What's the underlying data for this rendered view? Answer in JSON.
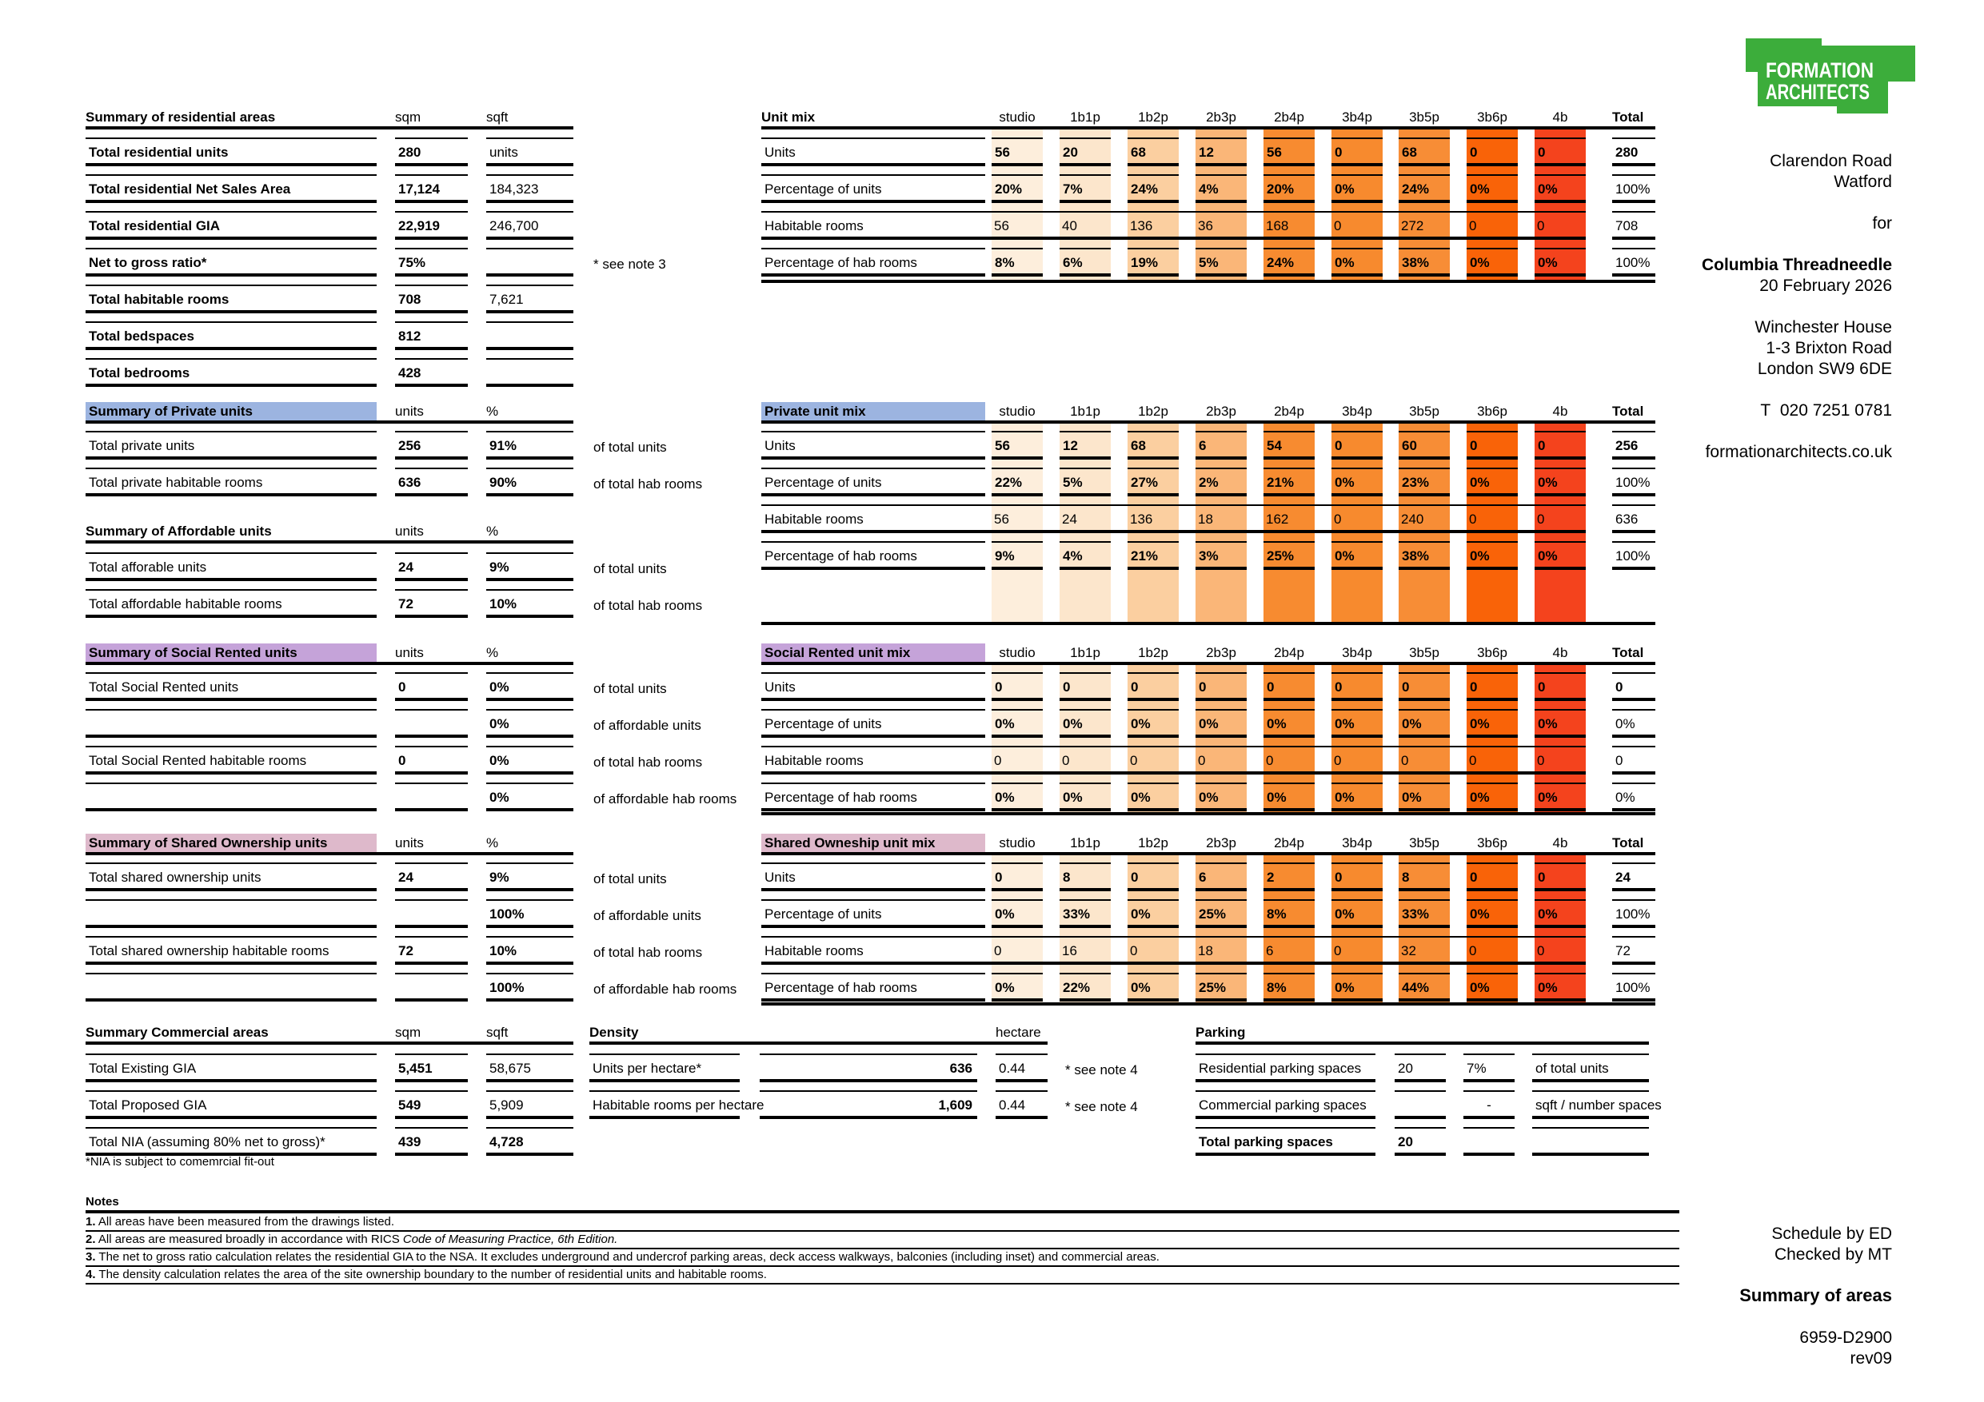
{
  "brand": {
    "line1": "FORMATION",
    "line2": "ARCHITECTS",
    "color": "#3CAD3B"
  },
  "project": {
    "address1": "Clarendon Road",
    "address2": "Watford",
    "for_label": "for",
    "client": "Columbia Threadneedle",
    "date": "20 February 2026",
    "office1": "Winchester House",
    "office2": "1-3 Brixton Road",
    "office3": "London SW9 6DE",
    "phone": "T  020 7251 0781",
    "website": "formationarchitects.co.uk"
  },
  "footer": {
    "schedule_by": "Schedule by ED",
    "checked_by": "Checked by MT",
    "doc_title": "Summary of areas",
    "doc_number": "6959-D2900",
    "revision": "rev09"
  },
  "labels": {
    "total": "Total"
  },
  "mix_columns": [
    "studio",
    "1b1p",
    "1b2p",
    "2b3p",
    "2b4p",
    "3b4p",
    "3b5p",
    "3b6p",
    "4b"
  ],
  "colors": {
    "blue": "#9CB4E0",
    "purple": "#C5A3D9",
    "pink": "#DEB9CB",
    "band_colors": [
      "#FDEEDC",
      "#FCE6CC",
      "#FBCFA0",
      "#FAB678",
      "#F78B30",
      "#F78A2E",
      "#F78D36",
      "#F96308",
      "#F4431D"
    ]
  },
  "residential_summary": {
    "title": "Summary of residential areas",
    "unit1": "sqm",
    "unit2": "sqft",
    "rows": [
      {
        "label": "Total residential units",
        "v1": "280",
        "v2": "units"
      },
      {
        "label": "Total residential Net Sales Area",
        "v1": "17,124",
        "v2": "184,323"
      },
      {
        "label": "Total residential GIA",
        "v1": "22,919",
        "v2": "246,700"
      },
      {
        "label": "Net to gross ratio*",
        "v1": "75%",
        "v2": "",
        "note": "* see note 3"
      },
      {
        "label": "Total habitable rooms",
        "v1": "708",
        "v2": "7,621"
      },
      {
        "label": "Total  bedspaces",
        "v1": "812",
        "v2": ""
      },
      {
        "label": "Total bedrooms",
        "v1": "428",
        "v2": ""
      }
    ]
  },
  "unit_mix": {
    "title": "Unit mix",
    "rows": [
      {
        "label": "Units",
        "values": [
          "56",
          "20",
          "68",
          "12",
          "56",
          "0",
          "68",
          "0",
          "0"
        ],
        "total": "280"
      },
      {
        "label": "Percentage of units",
        "values": [
          "20%",
          "7%",
          "24%",
          "4%",
          "20%",
          "0%",
          "24%",
          "0%",
          "0%"
        ],
        "total": "100%"
      },
      {
        "label": "Habitable rooms",
        "values": [
          "56",
          "40",
          "136",
          "36",
          "168",
          "0",
          "272",
          "0",
          "0"
        ],
        "total": "708"
      },
      {
        "label": "Percentage of hab rooms",
        "values": [
          "8%",
          "6%",
          "19%",
          "5%",
          "24%",
          "0%",
          "38%",
          "0%",
          "0%"
        ],
        "total": "100%"
      }
    ]
  },
  "private_summary": {
    "title": "Summary of Private units",
    "unit1": "units",
    "unit2": "%",
    "rows": [
      {
        "label": "Total private units",
        "v1": "256",
        "v2": "91%",
        "annot": "of total units"
      },
      {
        "label": "Total private habitable rooms",
        "v1": "636",
        "v2": "90%",
        "annot": "of total hab rooms"
      }
    ]
  },
  "affordable_summary": {
    "title": "Summary of Affordable units",
    "unit1": "units",
    "unit2": "%",
    "rows": [
      {
        "label": "Total afforable units",
        "v1": "24",
        "v2": "9%",
        "annot": "of total units"
      },
      {
        "label": "Total affordable habitable rooms",
        "v1": "72",
        "v2": "10%",
        "annot": "of total hab rooms"
      }
    ]
  },
  "private_mix": {
    "title": "Private unit mix",
    "rows": [
      {
        "label": "Units",
        "values": [
          "56",
          "12",
          "68",
          "6",
          "54",
          "0",
          "60",
          "0",
          "0"
        ],
        "total": "256"
      },
      {
        "label": "Percentage of units",
        "values": [
          "22%",
          "5%",
          "27%",
          "2%",
          "21%",
          "0%",
          "23%",
          "0%",
          "0%"
        ],
        "total": "100%"
      },
      {
        "label": "Habitable rooms",
        "values": [
          "56",
          "24",
          "136",
          "18",
          "162",
          "0",
          "240",
          "0",
          "0"
        ],
        "total": "636"
      },
      {
        "label": "Percentage of hab rooms",
        "values": [
          "9%",
          "4%",
          "21%",
          "3%",
          "25%",
          "0%",
          "38%",
          "0%",
          "0%"
        ],
        "total": "100%"
      }
    ]
  },
  "social_summary": {
    "title": "Summary of Social Rented units",
    "unit1": "units",
    "unit2": "%",
    "rows": [
      {
        "label": "Total Social Rented units",
        "v1": "0",
        "v2": "0%",
        "annot": "of total units"
      },
      {
        "label": "",
        "v1": "",
        "v2": "0%",
        "annot": "of affordable units"
      },
      {
        "label": "Total Social Rented habitable rooms",
        "v1": "0",
        "v2": "0%",
        "annot": "of total hab rooms"
      },
      {
        "label": "",
        "v1": "",
        "v2": "0%",
        "annot": "of affordable hab rooms"
      }
    ]
  },
  "social_mix": {
    "title": "Social Rented unit mix",
    "rows": [
      {
        "label": "Units",
        "values": [
          "0",
          "0",
          "0",
          "0",
          "0",
          "0",
          "0",
          "0",
          "0"
        ],
        "total": "0"
      },
      {
        "label": "Percentage of units",
        "values": [
          "0%",
          "0%",
          "0%",
          "0%",
          "0%",
          "0%",
          "0%",
          "0%",
          "0%"
        ],
        "total": "0%"
      },
      {
        "label": "Habitable rooms",
        "values": [
          "0",
          "0",
          "0",
          "0",
          "0",
          "0",
          "0",
          "0",
          "0"
        ],
        "total": "0"
      },
      {
        "label": "Percentage of hab rooms",
        "values": [
          "0%",
          "0%",
          "0%",
          "0%",
          "0%",
          "0%",
          "0%",
          "0%",
          "0%"
        ],
        "total": "0%"
      }
    ]
  },
  "shared_summary": {
    "title": "Summary of Shared Ownership units",
    "unit1": "units",
    "unit2": "%",
    "rows": [
      {
        "label": "Total shared ownership units",
        "v1": "24",
        "v2": "9%",
        "annot": "of total units"
      },
      {
        "label": "",
        "v1": "",
        "v2": "100%",
        "annot": "of affordable units"
      },
      {
        "label": "Total shared ownership habitable rooms",
        "v1": "72",
        "v2": "10%",
        "annot": "of total hab rooms"
      },
      {
        "label": "",
        "v1": "",
        "v2": "100%",
        "annot": "of affordable hab rooms"
      }
    ]
  },
  "shared_mix": {
    "title": "Shared Owneship unit mix",
    "rows": [
      {
        "label": "Units",
        "values": [
          "0",
          "8",
          "0",
          "6",
          "2",
          "0",
          "8",
          "0",
          "0"
        ],
        "total": "24"
      },
      {
        "label": "Percentage of units",
        "values": [
          "0%",
          "33%",
          "0%",
          "25%",
          "8%",
          "0%",
          "33%",
          "0%",
          "0%"
        ],
        "total": "100%"
      },
      {
        "label": "Habitable rooms",
        "values": [
          "0",
          "16",
          "0",
          "18",
          "6",
          "0",
          "32",
          "0",
          "0"
        ],
        "total": "72"
      },
      {
        "label": "Percentage of hab rooms",
        "values": [
          "0%",
          "22%",
          "0%",
          "25%",
          "8%",
          "0%",
          "44%",
          "0%",
          "0%"
        ],
        "total": "100%"
      }
    ]
  },
  "commercial_summary": {
    "title": "Summary Commercial areas",
    "unit1": "sqm",
    "unit2": "sqft",
    "rows": [
      {
        "label": "Total Existing GIA",
        "v1": "5,451",
        "v2": "58,675"
      },
      {
        "label": "Total Proposed GIA",
        "v1": "549",
        "v2": "5,909"
      },
      {
        "label": "Total NIA (assuming 80% net to gross)*",
        "v1": "439",
        "v2": "4,728"
      }
    ],
    "footnote": "*NIA is subject to comemrcial fit-out"
  },
  "density": {
    "title": "Density",
    "unit": "hectare",
    "rows": [
      {
        "label": "Units per hectare*",
        "value": "636",
        "hectare": "0.44",
        "note": "* see note 4"
      },
      {
        "label": "Habitable rooms per hectare",
        "value": "1,609",
        "hectare": "0.44",
        "note": "* see note 4"
      }
    ]
  },
  "parking": {
    "title": "Parking",
    "rows": [
      {
        "label": "Residential parking spaces",
        "v1": "20",
        "v2": "7%",
        "annot": "of total units"
      },
      {
        "label": "Commercial parking spaces",
        "v1": "",
        "v2": "-",
        "annot": "sqft / number spaces"
      },
      {
        "label": "Total parking spaces",
        "v1": "20",
        "v2": "",
        "annot": ""
      }
    ]
  },
  "notes": {
    "title": "Notes",
    "items": [
      {
        "num": "1.",
        "text": " All areas have been measured from the drawings listed.",
        "italic": ""
      },
      {
        "num": "2.",
        "text": " All areas are measured broadly in accordance with RICS ",
        "italic": "Code of Measuring Practice, 6th Edition."
      },
      {
        "num": "3.",
        "text": " The net to gross ratio calculation relates the residential GIA to the NSA. It excludes underground and undercrof parking areas, deck access walkways, balconies (including inset) and commercial areas.",
        "italic": ""
      },
      {
        "num": "4.",
        "text": " The density calculation relates the area of the site ownership boundary to the number of residential units and habitable rooms.",
        "italic": ""
      }
    ]
  }
}
